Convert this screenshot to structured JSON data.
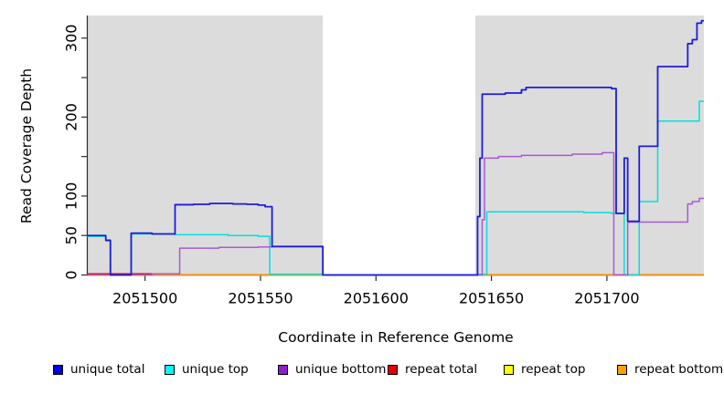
{
  "chart_data": {
    "type": "line",
    "subtype": "step-coverage",
    "title": "",
    "xlabel": "Coordinate in Reference Genome",
    "ylabel": "Read Coverage Depth",
    "xlim": [
      2051475,
      2051742
    ],
    "ylim": [
      0,
      328
    ],
    "x_ticks": [
      2051500,
      2051550,
      2051600,
      2051650,
      2051700
    ],
    "y_ticks": [
      0,
      50,
      100,
      150,
      200,
      250,
      300
    ],
    "y_tick_labels": [
      "0",
      "50",
      "100",
      "",
      "200",
      "",
      "300"
    ],
    "grid": false,
    "plot_background": "#ffffff",
    "shaded_region_color": "#dcdcdc",
    "shaded_regions": [
      [
        2051475,
        2051577
      ],
      [
        2051643,
        2051742
      ]
    ],
    "shaded_region_top_value": 328,
    "gap_region": {
      "x": [
        2051577,
        2051643
      ],
      "top_value": 322,
      "color": "#ffffff"
    },
    "axis_color": "#2b2b2b",
    "legend_position": "bottom",
    "legend": [
      {
        "label": "unique total",
        "color": "#0000e0"
      },
      {
        "label": "unique top",
        "color": "#00ffff"
      },
      {
        "label": "unique bottom",
        "color": "#8b1fc8"
      },
      {
        "label": "repeat total",
        "color": "#e00000"
      },
      {
        "label": "repeat top",
        "color": "#ffff00"
      },
      {
        "label": "repeat bottom",
        "color": "#ffa000"
      }
    ],
    "series": [
      {
        "name": "repeat top",
        "color": "#ffff00",
        "width": 1.5,
        "segments": [
          [
            [
              2051475,
              0
            ],
            [
              2051577,
              0
            ]
          ],
          [
            [
              2051643,
              0
            ],
            [
              2051742,
              0
            ]
          ]
        ]
      },
      {
        "name": "repeat total",
        "color": "#dd0000",
        "width": 1.5,
        "segments": [
          [
            [
              2051475,
              1.5
            ],
            [
              2051503,
              0
            ],
            [
              2051577,
              0
            ]
          ],
          [
            [
              2051643,
              0
            ],
            [
              2051742,
              0
            ]
          ]
        ]
      },
      {
        "name": "repeat bottom",
        "color": "#ff9400",
        "width": 1.6,
        "segments": [
          [
            [
              2051475,
              0
            ],
            [
              2051577,
              0
            ]
          ],
          [
            [
              2051643,
              0
            ],
            [
              2051742,
              0
            ]
          ]
        ]
      },
      {
        "name": "unique top",
        "color": "#00dfdf",
        "width": 1.5,
        "segments": [
          [
            [
              2051475,
              49
            ],
            [
              2051483,
              43
            ],
            [
              2051485,
              0
            ],
            [
              2051494,
              52
            ],
            [
              2051513,
              51
            ],
            [
              2051536,
              50
            ],
            [
              2051549,
              49
            ],
            [
              2051554,
              1
            ],
            [
              2051577,
              0
            ],
            [
              2051644,
              1
            ],
            [
              2051648,
              80
            ],
            [
              2051690,
              79
            ],
            [
              2051702,
              78
            ],
            [
              2051707.5,
              0
            ],
            [
              2051714,
              93
            ],
            [
              2051722,
              195
            ],
            [
              2051740,
              220
            ],
            [
              2051742,
              220
            ]
          ]
        ]
      },
      {
        "name": "unique bottom",
        "color": "#a55ad2",
        "width": 1.5,
        "segments": [
          [
            [
              2051475,
              0
            ],
            [
              2051503,
              1.5
            ],
            [
              2051515,
              34
            ],
            [
              2051532,
              35
            ],
            [
              2051549,
              35.5
            ],
            [
              2051555,
              36
            ],
            [
              2051577,
              0
            ],
            [
              2051646,
              70
            ],
            [
              2051647,
              148
            ],
            [
              2051653,
              150
            ],
            [
              2051663,
              151.5
            ],
            [
              2051685,
              153
            ],
            [
              2051698,
              155
            ],
            [
              2051703,
              0
            ],
            [
              2051709,
              67
            ],
            [
              2051735,
              90
            ],
            [
              2051737,
              93
            ],
            [
              2051740,
              97
            ],
            [
              2051742,
              97
            ]
          ]
        ]
      },
      {
        "name": "unique total",
        "color": "#1c1cdc",
        "width": 1.8,
        "segments": [
          [
            [
              2051475,
              50
            ],
            [
              2051483,
              44
            ],
            [
              2051485,
              0
            ],
            [
              2051494,
              53
            ],
            [
              2051503,
              52
            ],
            [
              2051513,
              89
            ],
            [
              2051521,
              89.5
            ],
            [
              2051528,
              90.5
            ],
            [
              2051538,
              90
            ],
            [
              2051544,
              89.5
            ],
            [
              2051549,
              88.5
            ],
            [
              2051552,
              86.5
            ],
            [
              2051555,
              36
            ],
            [
              2051577,
              0
            ],
            [
              2051644,
              74
            ],
            [
              2051645,
              148
            ],
            [
              2051646,
              229
            ],
            [
              2051656,
              230.5
            ],
            [
              2051663,
              234.5
            ],
            [
              2051665,
              237.5
            ],
            [
              2051702,
              236
            ],
            [
              2051704,
              78
            ],
            [
              2051707.5,
              148
            ],
            [
              2051709,
              68
            ],
            [
              2051714,
              163
            ],
            [
              2051722,
              264
            ],
            [
              2051735,
              293
            ],
            [
              2051737,
              298
            ],
            [
              2051739,
              319
            ],
            [
              2051741,
              322
            ],
            [
              2051742,
              322
            ]
          ]
        ]
      }
    ]
  }
}
